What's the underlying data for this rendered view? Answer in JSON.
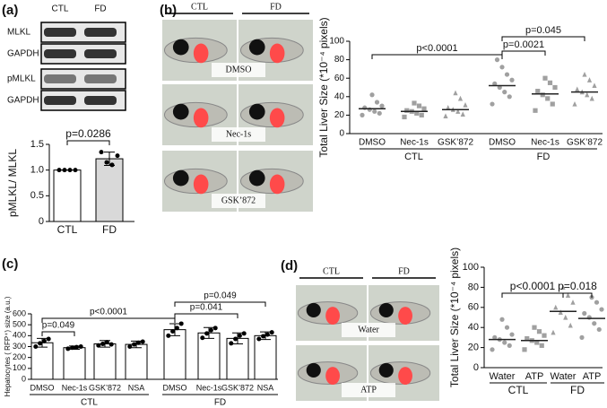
{
  "panel_labels": [
    "(a)",
    "(b)",
    "(c)",
    "(d)"
  ],
  "blot": {
    "columns": [
      "CTL",
      "FD"
    ],
    "rows": [
      "MLKL",
      "GAPDH",
      "pMLKL",
      "GAPDH"
    ]
  },
  "micrographs_b": {
    "columns": [
      "CTL",
      "FD"
    ],
    "rows": [
      "DMSO",
      "Nec-1s",
      "GSK’872"
    ]
  },
  "micrographs_d": {
    "columns": [
      "CTL",
      "FD"
    ],
    "rows": [
      "Water",
      "ATP"
    ]
  },
  "chart_data": [
    {
      "type": "bar",
      "ylabel": "pMLKL/ MLKL",
      "categories": [
        "CTL",
        "FD"
      ],
      "values": [
        1.0,
        1.22
      ],
      "errors": [
        0,
        0.13
      ],
      "colors": [
        "#ffffff",
        "#d9d9d9"
      ],
      "points": [
        [
          1.0,
          1.0,
          1.0,
          1.0
        ],
        [
          1.35,
          1.15,
          1.1,
          1.28
        ]
      ],
      "ylim": [
        0,
        1.5
      ],
      "yticks": [
        0,
        0.5,
        {
          "value": 1,
          "label": "1.0"
        },
        {
          "value": 1.5,
          "label": "1.5"
        }
      ],
      "comparisons": [
        {
          "label": "p=0.0286",
          "from": 0,
          "to": 1
        }
      ]
    },
    {
      "type": "strip",
      "ylabel": "Total Liver Size (*10⁻⁴ pixels)",
      "categories": [
        "DMSO",
        "Nec-1s",
        "GSK’872",
        "DMSO",
        "Nec-1s",
        "GSK’872"
      ],
      "groups": [
        "CTL",
        "FD"
      ],
      "markers": [
        "circle",
        "square",
        "triangle",
        "circle",
        "square",
        "triangle"
      ],
      "color": "#a0a0a0",
      "points": [
        [
          20,
          22,
          24,
          26,
          28,
          30,
          34,
          42
        ],
        [
          18,
          20,
          22,
          24,
          25,
          27,
          30,
          33
        ],
        [
          19,
          21,
          24,
          26,
          28,
          31,
          38,
          44
        ],
        [
          32,
          40,
          45,
          50,
          54,
          58,
          64,
          72,
          80
        ],
        [
          25,
          32,
          38,
          42,
          46,
          50,
          55,
          60
        ],
        [
          32,
          38,
          42,
          45,
          48,
          52,
          58,
          64
        ]
      ],
      "means": [
        27,
        24,
        26,
        52,
        43,
        45
      ],
      "ylim": [
        0,
        100
      ],
      "yticks": [
        0,
        20,
        40,
        60,
        80,
        100
      ],
      "comparisons": [
        {
          "label": "p<0.0001",
          "from": 0,
          "to": 3
        },
        {
          "label": "p=0.0021",
          "from": 3,
          "to": 4
        },
        {
          "label": "p=0.045",
          "from": 3,
          "to": 5
        }
      ]
    },
    {
      "type": "bar",
      "ylabel": "Hepatocytes ( RFP⁺) size (a.u.)",
      "categories": [
        "DMSO",
        "Nec-1s",
        "GSK’872",
        "NSA",
        "DMSO",
        "Nec-1s",
        "GSK’872",
        "NSA"
      ],
      "groups": [
        "CTL",
        "FD"
      ],
      "values": [
        335,
        290,
        325,
        320,
        455,
        425,
        375,
        400
      ],
      "errors": [
        40,
        15,
        30,
        30,
        55,
        50,
        50,
        35
      ],
      "colors": [
        "#ffffff",
        "#ffffff",
        "#ffffff",
        "#ffffff",
        "#ffffff",
        "#ffffff",
        "#ffffff",
        "#ffffff"
      ],
      "points": [
        [
          300,
          330,
          350,
          370
        ],
        [
          280,
          290,
          295,
          300
        ],
        [
          310,
          325,
          340,
          320
        ],
        [
          300,
          320,
          335,
          345
        ],
        [
          400,
          440,
          470,
          510
        ],
        [
          380,
          420,
          450,
          470
        ],
        [
          330,
          370,
          400,
          420
        ],
        [
          370,
          395,
          410,
          430
        ]
      ],
      "ylim": [
        0,
        600
      ],
      "yticks": [
        0,
        100,
        200,
        300,
        400,
        500,
        600
      ],
      "comparisons": [
        {
          "label": "p=0.049",
          "from": 0,
          "to": 1
        },
        {
          "label": "p<0.0001",
          "from": 0,
          "to": 4
        },
        {
          "label": "p=0.041",
          "from": 4,
          "to": 6
        },
        {
          "label": "p=0.049",
          "from": 4,
          "to": 7
        }
      ]
    },
    {
      "type": "strip",
      "ylabel": "Total Liver Size (*10⁻⁴ pixels)",
      "categories": [
        "Water",
        "ATP",
        "Water",
        "ATP"
      ],
      "groups": [
        "CTL",
        "FD"
      ],
      "markers": [
        "circle",
        "square",
        "triangle",
        "circle"
      ],
      "color": "#a0a0a0",
      "points": [
        [
          18,
          22,
          25,
          28,
          30,
          33,
          40,
          48
        ],
        [
          18,
          22,
          25,
          27,
          29,
          32,
          36,
          40
        ],
        [
          35,
          42,
          50,
          55,
          60,
          65,
          72,
          80
        ],
        [
          30,
          38,
          44,
          50,
          54,
          58,
          65,
          70
        ]
      ],
      "means": [
        28,
        27,
        56,
        49
      ],
      "ylim": [
        0,
        100
      ],
      "yticks": [
        0,
        20,
        40,
        60,
        80,
        100
      ],
      "comparisons": [
        {
          "label": "p<0.0001",
          "from": 0,
          "to": 2
        },
        {
          "label": "p=0.018",
          "from": 2,
          "to": 3
        }
      ]
    }
  ]
}
